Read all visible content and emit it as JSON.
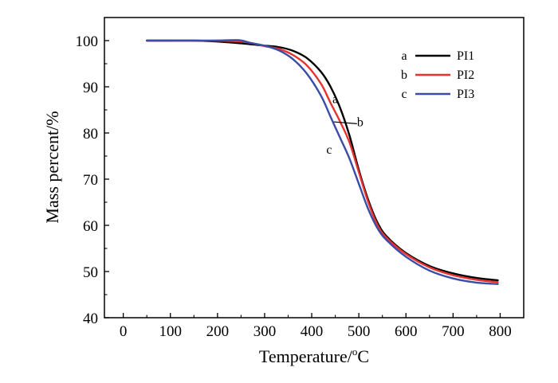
{
  "chart_data": {
    "type": "line",
    "xlabel": "Temperature/",
    "xlabel_unit_sup": "o",
    "xlabel_unit": "C",
    "ylabel": "Mass percent/%",
    "xlim": [
      -40,
      850
    ],
    "ylim": [
      40,
      105
    ],
    "x_ticks": [
      "0",
      "100",
      "200",
      "300",
      "400",
      "500",
      "600",
      "700",
      "800"
    ],
    "y_ticks": [
      "40",
      "50",
      "60",
      "70",
      "80",
      "90",
      "100"
    ],
    "grid": false,
    "legend_position": "top-right",
    "series": [
      {
        "name": "PI1",
        "letter": "a",
        "color": "#000000",
        "points": [
          [
            50,
            100
          ],
          [
            100,
            100
          ],
          [
            150,
            100
          ],
          [
            200,
            99.8
          ],
          [
            250,
            99.4
          ],
          [
            300,
            98.9
          ],
          [
            330,
            98.6
          ],
          [
            360,
            97.8
          ],
          [
            390,
            96.2
          ],
          [
            420,
            93.2
          ],
          [
            440,
            90.0
          ],
          [
            460,
            85.5
          ],
          [
            480,
            79.5
          ],
          [
            500,
            72.0
          ],
          [
            520,
            65.5
          ],
          [
            540,
            60.5
          ],
          [
            560,
            57.5
          ],
          [
            600,
            54.0
          ],
          [
            650,
            51.2
          ],
          [
            700,
            49.6
          ],
          [
            750,
            48.6
          ],
          [
            795,
            48.1
          ]
        ]
      },
      {
        "name": "PI2",
        "letter": "b",
        "color": "#e8322d",
        "points": [
          [
            50,
            100
          ],
          [
            100,
            100
          ],
          [
            150,
            100
          ],
          [
            200,
            100
          ],
          [
            250,
            99.8
          ],
          [
            280,
            99.3
          ],
          [
            300,
            98.8
          ],
          [
            330,
            98.2
          ],
          [
            360,
            96.9
          ],
          [
            390,
            94.6
          ],
          [
            420,
            90.6
          ],
          [
            440,
            86.5
          ],
          [
            460,
            82.5
          ],
          [
            480,
            78.0
          ],
          [
            500,
            71.5
          ],
          [
            520,
            65.0
          ],
          [
            540,
            60.0
          ],
          [
            560,
            57.2
          ],
          [
            600,
            53.8
          ],
          [
            650,
            50.9
          ],
          [
            700,
            49.2
          ],
          [
            750,
            48.2
          ],
          [
            795,
            47.7
          ]
        ]
      },
      {
        "name": "PI3",
        "letter": "c",
        "color": "#3a4ba8",
        "points": [
          [
            50,
            100
          ],
          [
            100,
            100
          ],
          [
            150,
            100
          ],
          [
            200,
            100
          ],
          [
            245,
            100.1
          ],
          [
            270,
            99.5
          ],
          [
            300,
            98.9
          ],
          [
            330,
            97.9
          ],
          [
            360,
            96.0
          ],
          [
            390,
            92.8
          ],
          [
            420,
            88.0
          ],
          [
            440,
            83.5
          ],
          [
            460,
            79.0
          ],
          [
            480,
            74.5
          ],
          [
            500,
            69.0
          ],
          [
            520,
            63.5
          ],
          [
            540,
            59.3
          ],
          [
            560,
            56.7
          ],
          [
            600,
            53.2
          ],
          [
            650,
            50.2
          ],
          [
            700,
            48.5
          ],
          [
            750,
            47.6
          ],
          [
            795,
            47.3
          ]
        ]
      }
    ],
    "annotations": [
      {
        "text": "a",
        "x": 450,
        "y": 86.5
      },
      {
        "text": "b",
        "x": 503,
        "y": 81.5
      },
      {
        "text": "c",
        "x": 437,
        "y": 75.5
      }
    ]
  }
}
